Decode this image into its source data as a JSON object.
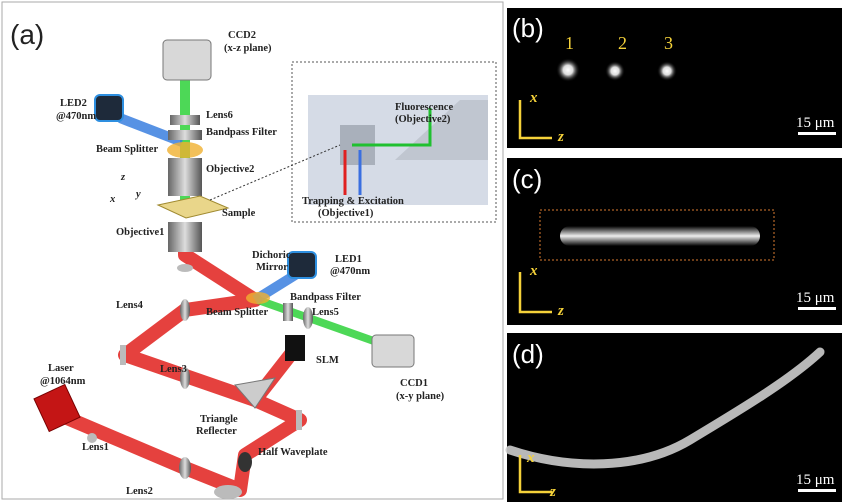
{
  "panel_a": {
    "tag": "(a)",
    "ccd2": [
      "CCD2",
      "(x-z plane)"
    ],
    "led2": [
      "LED2",
      "@470nm"
    ],
    "lens6": "Lens6",
    "bandpass_top": "Bandpass Filter",
    "beam_splitter_top": "Beam Splitter",
    "objective2": "Objective2",
    "inset": {
      "fluorescence": [
        "Fluorescence",
        "(Objective2)"
      ],
      "trapping": [
        "Trapping & Excitation",
        "(Objective1)"
      ]
    },
    "axes": {
      "x": "x",
      "y": "y",
      "z": "z"
    },
    "sample": "Sample",
    "objective1": "Objective1",
    "dichoric": [
      "Dichoric",
      "Mirror"
    ],
    "led1": [
      "LED1",
      "@470nm"
    ],
    "bandpass_bottom": "Bandpass Filter",
    "lens4": "Lens4",
    "beam_splitter_bottom": "Beam Splitter",
    "lens5": "Lens5",
    "slm": "SLM",
    "ccd1": [
      "CCD1",
      "(x-y plane)"
    ],
    "laser": [
      "Laser",
      "@1064nm"
    ],
    "lens3": "Lens3",
    "triangle": [
      "Triangle",
      "Reflecter"
    ],
    "lens1": "Lens1",
    "lens2": "Lens2",
    "half_waveplate": "Half Waveplate"
  },
  "panel_b": {
    "tag": "(b)",
    "particles": [
      "1",
      "2",
      "3"
    ],
    "axis_x": "x",
    "axis_z": "z",
    "scale": "15 μm"
  },
  "panel_c": {
    "tag": "(c)",
    "axis_x": "x",
    "axis_z": "z",
    "scale": "15 μm"
  },
  "panel_d": {
    "tag": "(d)",
    "axis_x": "x",
    "axis_z": "z",
    "scale": "15 μm"
  }
}
